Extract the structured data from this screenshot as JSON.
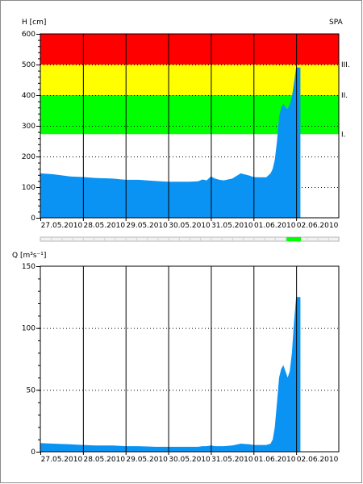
{
  "station_code": "SPA",
  "chart_data": [
    {
      "type": "area",
      "ylabel": "H [cm]",
      "ylim": [
        0,
        600
      ],
      "yticks": [
        0,
        100,
        200,
        300,
        400,
        500,
        600
      ],
      "categories": [
        "27.05.2010",
        "28.05.2010",
        "29.05.2010",
        "30.05.2010",
        "31.05.2010",
        "01.06.2010",
        "02.06.2010"
      ],
      "xrange_days": [
        0,
        7
      ],
      "zones": [
        {
          "label": "I.",
          "from": 273,
          "to": 400,
          "color": "#00ff00"
        },
        {
          "label": "II.",
          "from": 400,
          "to": 500,
          "color": "#ffff00"
        },
        {
          "label": "III.",
          "from": 500,
          "to": 600,
          "color": "#ff0000"
        }
      ],
      "series": [
        {
          "color": "#0a93f3",
          "x": [
            0,
            0.3,
            0.7,
            1.0,
            1.3,
            1.7,
            2.0,
            2.3,
            2.7,
            3.0,
            3.2,
            3.5,
            3.7,
            3.8,
            3.9,
            4.0,
            4.1,
            4.2,
            4.3,
            4.5,
            4.7,
            4.9,
            5.0,
            5.1,
            5.2,
            5.3,
            5.4,
            5.45,
            5.5,
            5.55,
            5.6,
            5.65,
            5.7,
            5.75,
            5.8,
            5.85,
            5.9,
            5.95,
            6.0,
            6.05,
            6.1
          ],
          "values": [
            145,
            142,
            135,
            133,
            130,
            128,
            124,
            124,
            120,
            118,
            118,
            118,
            119,
            125,
            122,
            135,
            128,
            124,
            122,
            128,
            145,
            138,
            133,
            132,
            132,
            132,
            145,
            160,
            190,
            250,
            330,
            360,
            372,
            360,
            355,
            370,
            395,
            440,
            490,
            490,
            490
          ]
        }
      ],
      "current_marker": {
        "x": 6.0,
        "indicator_color": "#00ff00"
      }
    },
    {
      "type": "area",
      "ylabel": "Q [m³s⁻¹]",
      "ylim": [
        0,
        150
      ],
      "yticks": [
        0,
        50,
        100,
        150
      ],
      "categories": [
        "27.05.2010",
        "28.05.2010",
        "29.05.2010",
        "30.05.2010",
        "31.05.2010",
        "01.06.2010",
        "02.06.2010"
      ],
      "xrange_days": [
        0,
        7
      ],
      "series": [
        {
          "color": "#0a93f3",
          "x": [
            0,
            0.3,
            0.7,
            1.0,
            1.3,
            1.7,
            2.0,
            2.3,
            2.7,
            3.0,
            3.3,
            3.7,
            3.8,
            3.9,
            4.0,
            4.1,
            4.2,
            4.3,
            4.5,
            4.7,
            4.9,
            5.0,
            5.1,
            5.2,
            5.3,
            5.4,
            5.45,
            5.5,
            5.55,
            5.6,
            5.65,
            5.7,
            5.75,
            5.8,
            5.85,
            5.9,
            5.95,
            6.0,
            6.05,
            6.1
          ],
          "values": [
            7,
            6.5,
            6,
            5.5,
            5,
            5,
            4.5,
            4.5,
            4,
            4,
            4,
            4,
            4.5,
            4.5,
            5,
            4.5,
            4.5,
            4.5,
            5,
            6.5,
            6,
            5.5,
            5.5,
            5.5,
            5.5,
            6.5,
            10,
            20,
            40,
            60,
            67,
            70,
            65,
            60,
            65,
            80,
            105,
            125,
            125,
            125
          ]
        }
      ]
    }
  ]
}
